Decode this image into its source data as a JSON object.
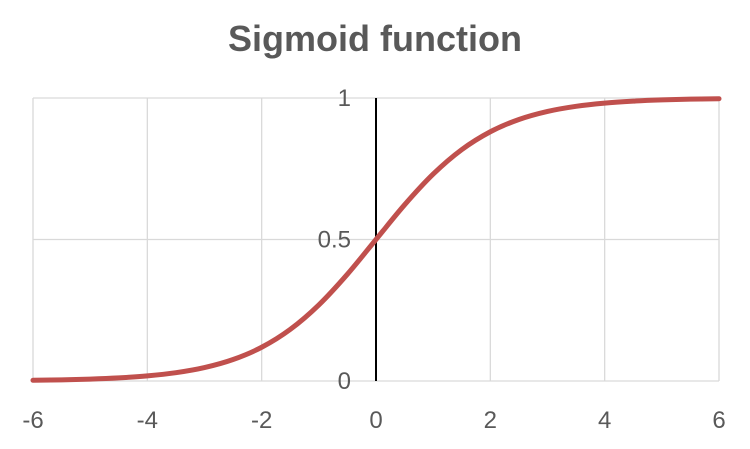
{
  "chart_data": {
    "type": "line",
    "title": "Sigmoid function",
    "xlabel": "",
    "ylabel": "",
    "xlim": [
      -6,
      6
    ],
    "ylim": [
      0,
      1
    ],
    "x_ticks": [
      -6,
      -4,
      -2,
      0,
      2,
      4,
      6
    ],
    "y_ticks": [
      0,
      0.5,
      1
    ],
    "x_tick_labels": [
      "-6",
      "-4",
      "-2",
      "0",
      "2",
      "4",
      "6"
    ],
    "y_tick_labels": [
      "0",
      "0.5",
      "1"
    ],
    "grid": true,
    "legend": "none",
    "series": [
      {
        "color": "#C0504D",
        "x": [
          -6,
          -5.5,
          -5,
          -4.5,
          -4,
          -3.5,
          -3,
          -2.5,
          -2,
          -1.5,
          -1,
          -0.5,
          0,
          0.5,
          1,
          1.5,
          2,
          2.5,
          3,
          3.5,
          4,
          4.5,
          5,
          5.5,
          6
        ],
        "y": [
          0.0025,
          0.0041,
          0.0067,
          0.011,
          0.018,
          0.0293,
          0.0474,
          0.0759,
          0.1192,
          0.1824,
          0.2689,
          0.3775,
          0.5,
          0.6225,
          0.7311,
          0.8176,
          0.8808,
          0.9241,
          0.9526,
          0.9707,
          0.982,
          0.989,
          0.9933,
          0.9959,
          0.9975
        ]
      }
    ],
    "colors": {
      "line": "#C0504D",
      "grid": "#D9D9D9",
      "y_axis_line": "#000000",
      "text": "#595959"
    }
  }
}
